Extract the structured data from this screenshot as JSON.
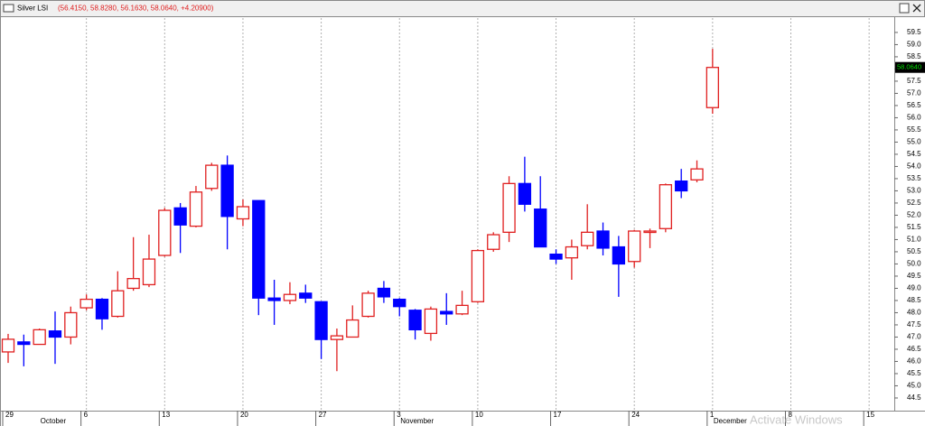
{
  "chart_data": {
    "type": "candlestick",
    "title": "Silver LSI",
    "subtitle": "(56.4150, 58.8280, 56.1630, 58.0640, +4.20900)",
    "watermark": "Activate Windows",
    "categories": [
      "29",
      null,
      null,
      null,
      null,
      "6",
      null,
      null,
      null,
      null,
      "13",
      null,
      null,
      null,
      null,
      "20",
      null,
      null,
      null,
      null,
      "27",
      null,
      null,
      null,
      null,
      "3",
      null,
      null,
      null,
      null,
      "10",
      null,
      null,
      null,
      null,
      "17",
      null,
      null,
      null,
      null,
      "24",
      null,
      null,
      null,
      null,
      "1",
      null,
      null,
      null,
      null,
      "8",
      null,
      null,
      null,
      null,
      "15"
    ],
    "months": [
      null,
      null,
      "October",
      null,
      null,
      null,
      null,
      null,
      null,
      null,
      null,
      null,
      null,
      null,
      null,
      null,
      null,
      null,
      null,
      null,
      null,
      null,
      null,
      null,
      null,
      "November",
      null,
      null,
      null,
      null,
      null,
      null,
      null,
      null,
      null,
      null,
      null,
      null,
      null,
      null,
      null,
      null,
      null,
      null,
      null,
      "December",
      null,
      null,
      null,
      null,
      null,
      null,
      null,
      null,
      null,
      null
    ],
    "open": [
      46.39,
      46.8,
      46.7,
      47.25,
      47.0,
      48.2,
      48.55,
      47.85,
      49.0,
      49.15,
      50.35,
      52.3,
      51.55,
      53.1,
      54.05,
      51.85,
      52.6,
      48.6,
      48.5,
      48.8,
      48.45,
      46.9,
      47.0,
      47.85,
      49.0,
      48.55,
      48.1,
      47.15,
      48.05,
      47.95,
      48.45,
      50.6,
      51.3,
      53.3,
      52.25,
      50.4,
      50.25,
      50.75,
      51.35,
      50.7,
      50.1,
      51.3,
      51.45,
      53.4,
      53.45,
      56.415,
      null,
      null,
      null,
      null,
      null,
      null,
      null,
      null,
      null,
      null
    ],
    "high": [
      47.13,
      47.1,
      47.35,
      48.05,
      48.25,
      48.75,
      48.6,
      49.7,
      51.1,
      51.2,
      52.3,
      52.5,
      53.2,
      54.15,
      54.45,
      52.65,
      52.6,
      49.35,
      49.25,
      49.15,
      48.45,
      47.35,
      48.3,
      48.9,
      49.3,
      48.6,
      48.15,
      48.25,
      48.8,
      48.9,
      50.6,
      51.3,
      53.6,
      54.4,
      53.6,
      50.6,
      51.0,
      52.45,
      51.7,
      51.15,
      51.4,
      51.45,
      53.3,
      53.9,
      54.25,
      58.828,
      null,
      null,
      null,
      null,
      null,
      null,
      null,
      null,
      null,
      null
    ],
    "low": [
      45.94,
      45.8,
      46.7,
      45.9,
      46.7,
      48.1,
      47.3,
      47.8,
      48.9,
      49.05,
      50.3,
      50.45,
      51.5,
      53.0,
      50.6,
      51.55,
      47.9,
      47.5,
      48.35,
      48.4,
      46.1,
      45.6,
      47.0,
      47.8,
      48.4,
      47.85,
      46.9,
      46.85,
      47.5,
      47.9,
      48.4,
      50.5,
      50.9,
      52.15,
      50.7,
      50.0,
      49.35,
      50.6,
      50.35,
      48.65,
      49.85,
      50.65,
      51.3,
      52.7,
      53.35,
      56.163,
      null,
      null,
      null,
      null,
      null,
      null,
      null,
      null,
      null,
      null
    ],
    "close": [
      46.91,
      46.7,
      47.3,
      47.0,
      48.0,
      48.55,
      47.75,
      48.9,
      49.4,
      50.2,
      52.2,
      51.6,
      52.95,
      54.05,
      51.95,
      52.35,
      48.6,
      48.5,
      48.75,
      48.6,
      46.9,
      47.05,
      47.7,
      48.8,
      48.65,
      48.25,
      47.3,
      48.15,
      47.95,
      48.3,
      50.55,
      51.2,
      53.3,
      52.45,
      50.7,
      50.2,
      50.7,
      51.3,
      50.65,
      50.0,
      51.35,
      51.35,
      53.25,
      53.0,
      53.9,
      58.064,
      null,
      null,
      null,
      null,
      null,
      null,
      null,
      null,
      null,
      null
    ],
    "up_color": "#e02020",
    "down_color": "#0000ff",
    "last_price": {
      "value": 58.064,
      "label": "58.0640"
    },
    "ylim": [
      43.98,
      60.09
    ],
    "yticks": [
      44.5,
      {
        "value": 45,
        "label": "45.0"
      },
      45.5,
      {
        "value": 46,
        "label": "46.0"
      },
      46.5,
      {
        "value": 47,
        "label": "47.0"
      },
      47.5,
      {
        "value": 48,
        "label": "48.0"
      },
      48.5,
      {
        "value": 49,
        "label": "49.0"
      },
      49.5,
      {
        "value": 50,
        "label": "50.0"
      },
      50.5,
      {
        "value": 51,
        "label": "51.0"
      },
      51.5,
      {
        "value": 52,
        "label": "52.0"
      },
      52.5,
      {
        "value": 53,
        "label": "53.0"
      },
      53.5,
      {
        "value": 54,
        "label": "54.0"
      },
      54.5,
      {
        "value": 55,
        "label": "55.0"
      },
      55.5,
      {
        "value": 56,
        "label": "56.0"
      },
      56.5,
      {
        "value": 57,
        "label": "57.0"
      },
      57.5,
      {
        "value": 58,
        "label": "58.0"
      },
      58.5,
      {
        "value": 59,
        "label": "59.0"
      },
      59.5
    ]
  }
}
